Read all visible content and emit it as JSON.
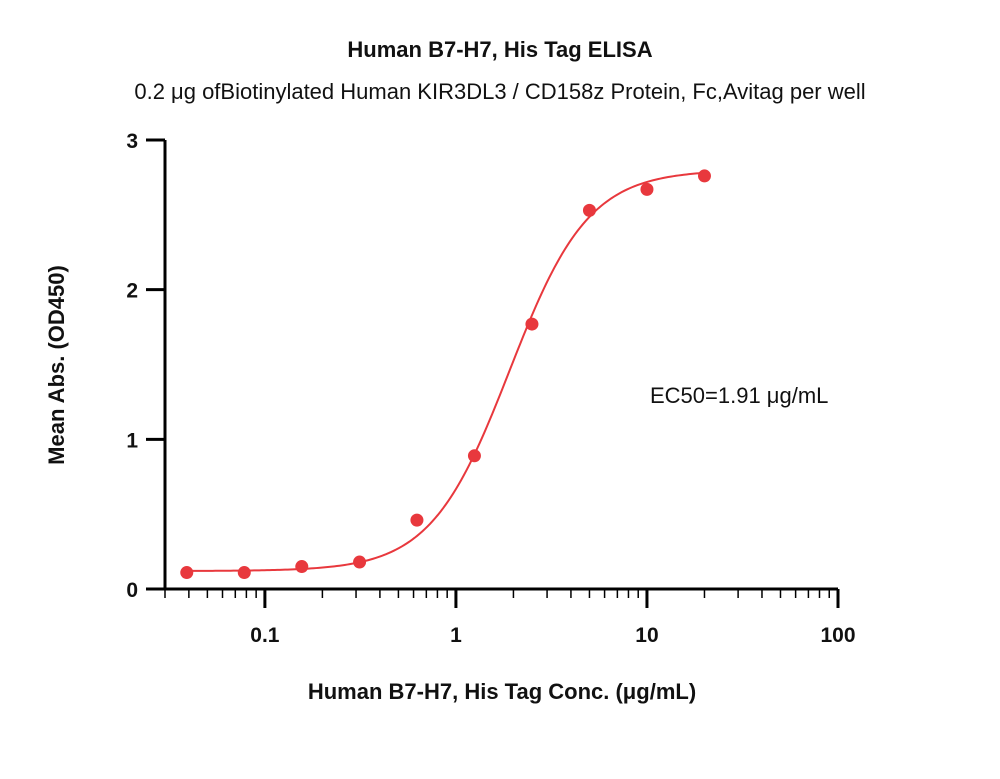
{
  "chart_data": {
    "type": "scatter",
    "title": "Human B7-H7, His Tag ELISA",
    "subtitle": "0.2 μg ofBiotinylated Human KIR3DL3 / CD158z Protein, Fc,Avitag per well",
    "xlabel": "Human B7-H7, His Tag Conc. (μg/mL)",
    "ylabel": "Mean Abs. (OD450)",
    "xscale": "log",
    "xlim": [
      0.03,
      100
    ],
    "ylim": [
      0,
      3
    ],
    "xticks": [
      0.1,
      1,
      10,
      100
    ],
    "xtick_labels": [
      "0.1",
      "1",
      "10",
      "100"
    ],
    "yticks": [
      0,
      1,
      2,
      3
    ],
    "ytick_labels": [
      "0",
      "1",
      "2",
      "3"
    ],
    "grid": false,
    "legend": "none",
    "color": "#e8383d",
    "annotation": "EC50=1.91 μg/mL",
    "series": [
      {
        "x": [
          0.039,
          0.078,
          0.156,
          0.313,
          0.625,
          1.25,
          2.5,
          5,
          10,
          20
        ],
        "y": [
          0.11,
          0.11,
          0.15,
          0.18,
          0.46,
          0.89,
          1.77,
          2.53,
          2.67,
          2.76
        ]
      }
    ],
    "fit": {
      "model": "4PL",
      "bottom": 0.12,
      "top": 2.8,
      "ec50": 1.91,
      "hill": 2.1,
      "x_range": [
        0.039,
        20
      ]
    }
  }
}
